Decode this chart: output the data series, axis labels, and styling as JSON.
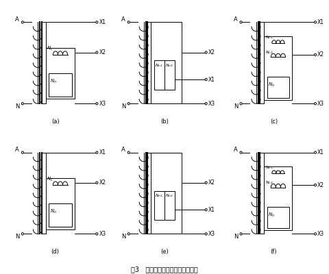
{
  "title": "图3   并联补偿辅助互感器接线方式",
  "background": "#ffffff",
  "panels": [
    "(a)",
    "(b)",
    "(c)",
    "(d)",
    "(e)",
    "(f)"
  ]
}
